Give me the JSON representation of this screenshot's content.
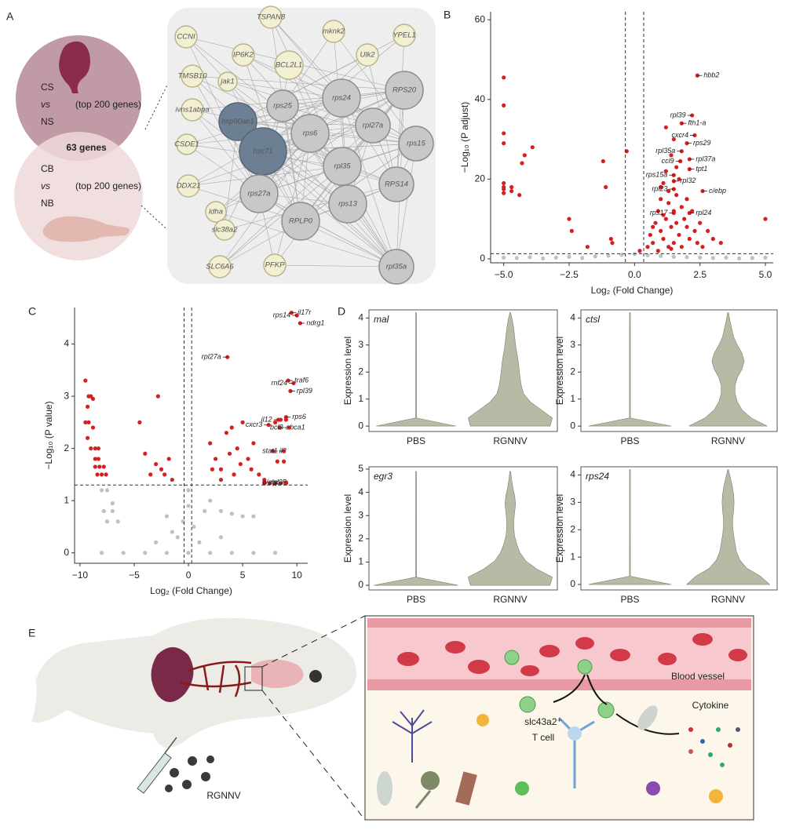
{
  "panel_labels": [
    "A",
    "B",
    "C",
    "D",
    "E"
  ],
  "panel_a": {
    "set_1": [
      "CS",
      "vs",
      "NS",
      "(top 200 genes)"
    ],
    "set_2": [
      "CB",
      "vs",
      "NB",
      "(top 200 genes)"
    ],
    "overlap": "63 genes",
    "nodes": [
      "TSPAN8",
      "mknk2",
      "YPEL1",
      "CCNI",
      "IP6K2",
      "BCL2L1",
      "Ulk2",
      "TMSB10",
      "jak1",
      "rps24",
      "RPS20",
      "ivns1abpa",
      "hsp90ab1",
      "rps25",
      "rpl27a",
      "rps6",
      "CSDE1",
      "hsc71",
      "rps15",
      "rpl35",
      "DDX21",
      "rps27a",
      "RPS14",
      "ldha",
      "rps13",
      "RPLP0",
      "slc38a2",
      "PFKP",
      "SLC6A6",
      "rpl35a"
    ]
  },
  "chart_data": [
    {
      "type": "scatter",
      "xlabel": "Log₂ (Fold Change)",
      "ylabel": "−Log₁₀ (P adjust)",
      "xlim": [
        -5.5,
        5.3
      ],
      "ylim": [
        -1,
        62
      ],
      "xticks": [
        {
          "value": -5,
          "label": "−5.0"
        },
        {
          "value": -2.5,
          "label": "−2.5"
        },
        {
          "value": 0,
          "label": "0.0"
        },
        {
          "value": 2.5,
          "label": "2.5"
        },
        {
          "value": 5,
          "label": "5.0"
        }
      ],
      "yticks": [
        0,
        20,
        40,
        60
      ],
      "vlines": [
        -0.35,
        0.35
      ],
      "hline": 1.3,
      "series": [
        {
          "color": "#c0c0c0",
          "x": [
            -5,
            -4.5,
            -4,
            -3.5,
            -3,
            -2.5,
            -2,
            -1.5,
            -1,
            -0.5,
            0,
            0.5,
            1,
            1.5,
            2,
            2.5,
            3,
            3.5,
            4,
            4.5,
            5
          ],
          "y": [
            0.3,
            0.2,
            0.4,
            0.1,
            0.3,
            0.5,
            0.2,
            0.6,
            0.8,
            1,
            1.2,
            0.9,
            0.7,
            0.5,
            0.4,
            0.3,
            0.2,
            0.3,
            0.1,
            0.2,
            0.3
          ]
        },
        {
          "color": "#d42020",
          "x": [
            -5,
            -5,
            -5,
            -5,
            -5,
            -5,
            -5,
            -5,
            -4.7,
            -4.7,
            -4.3,
            -4.2,
            -3.9,
            -4.4,
            -2.5,
            -2.4,
            -1.8,
            -1.2,
            -1.1,
            -0.9,
            -0.85,
            -0.3,
            0.2,
            0.5,
            0.6,
            0.7,
            0.8,
            0.9,
            1.0,
            1.0,
            1.1,
            1.1,
            1.2,
            1.2,
            1.3,
            1.3,
            1.4,
            1.4,
            1.5,
            1.5,
            1.5,
            1.6,
            1.6,
            1.7,
            1.7,
            1.8,
            1.8,
            1.9,
            2.0,
            2.0,
            2.1,
            2.2,
            2.3,
            2.4,
            2.5,
            2.6,
            2.8,
            3.0,
            1.2,
            0.9,
            1.4,
            1.6,
            1.0,
            5.0,
            3.3,
            1.1,
            1.3,
            0.7
          ],
          "y": [
            45.5,
            38.5,
            31.5,
            29,
            19,
            18,
            17.5,
            16.5,
            18,
            17,
            24,
            26,
            28,
            16,
            10,
            7,
            3,
            24.5,
            18,
            5,
            4,
            27,
            2,
            3,
            6,
            4,
            9,
            12,
            7,
            15,
            5,
            19,
            10,
            22,
            14,
            3,
            8,
            26,
            12,
            4,
            30,
            16,
            9,
            20,
            6,
            13,
            3,
            10,
            8,
            15,
            5,
            12,
            7,
            4,
            9,
            3,
            7,
            5,
            33,
            2,
            2.5,
            23,
            18,
            10,
            4,
            11,
            17,
            8
          ]
        }
      ],
      "labels": [
        {
          "text": "hbb2",
          "x": 2.4,
          "y": 46
        },
        {
          "text": "rpl39",
          "x": 2.2,
          "y": 36
        },
        {
          "text": "fth1-a",
          "x": 1.8,
          "y": 34
        },
        {
          "text": "cxcr4",
          "x": 2.3,
          "y": 31
        },
        {
          "text": "rps29",
          "x": 2.0,
          "y": 29
        },
        {
          "text": "rpl35a",
          "x": 1.8,
          "y": 27
        },
        {
          "text": "rpl37a",
          "x": 2.1,
          "y": 25
        },
        {
          "text": "ccl9",
          "x": 1.75,
          "y": 24.5
        },
        {
          "text": "tpt1",
          "x": 2.1,
          "y": 22.5
        },
        {
          "text": "rps15a",
          "x": 1.5,
          "y": 21
        },
        {
          "text": "rpl32",
          "x": 1.5,
          "y": 19.5
        },
        {
          "text": "rpl23",
          "x": 1.5,
          "y": 17.5
        },
        {
          "text": "c/ebp",
          "x": 2.6,
          "y": 17
        },
        {
          "text": "rps17",
          "x": 1.5,
          "y": 11.5
        },
        {
          "text": "rpl24",
          "x": 2.1,
          "y": 11.5
        }
      ]
    },
    {
      "type": "scatter",
      "xlabel": "Log₂ (Fold Change)",
      "ylabel": "−Log₁₀ (P value)",
      "xlim": [
        -10.5,
        11
      ],
      "ylim": [
        -0.2,
        4.7
      ],
      "xticks": [
        {
          "value": -10,
          "label": "−10"
        },
        {
          "value": -5,
          "label": "−5"
        },
        0,
        5,
        10
      ],
      "yticks": [
        0,
        1,
        2,
        3,
        4
      ],
      "vlines": [
        -0.4,
        0.3
      ],
      "hline": 1.3,
      "series": [
        {
          "color": "#c0c0c0",
          "x": [
            -7.5,
            -8,
            -7,
            -7.8,
            -7,
            -6.5,
            -7.5,
            -8,
            -6,
            -4,
            -2,
            0,
            2,
            4,
            6,
            8,
            -1,
            -0.5,
            0,
            0.5,
            1,
            -1.5,
            1.5,
            2,
            3,
            -2,
            4,
            0,
            5,
            6,
            -3,
            3
          ],
          "y": [
            1.2,
            1.2,
            0.95,
            0.8,
            0.8,
            0.6,
            0.6,
            0,
            0,
            0,
            0,
            0,
            0,
            0,
            0,
            0,
            0.3,
            0.6,
            0.9,
            0.5,
            0.2,
            0.4,
            0.8,
            1.0,
            0.8,
            0.7,
            0.75,
            1.2,
            0.7,
            0.7,
            0.2,
            0.3
          ]
        },
        {
          "color": "#d42020",
          "x": [
            -9.5,
            -9.2,
            -9.0,
            -8.8,
            -9.3,
            -9.5,
            -9.2,
            -8.8,
            -9.3,
            -9.0,
            -8.6,
            -8.3,
            -8.6,
            -8.3,
            -8.6,
            -8.2,
            -7.8,
            -8.4,
            -8.0,
            -7.6,
            -4.5,
            -4.0,
            -3.5,
            -2.8,
            -2.5,
            -2.2,
            -3.0,
            -1.8,
            -1.5,
            2.0,
            2.5,
            3.0,
            3.5,
            3.8,
            4.0,
            4.5,
            4.8,
            5.0,
            5.5,
            6.0,
            6.5,
            7.0,
            3.0,
            2.2,
            5.8,
            4.2,
            7.0,
            7.5,
            8.0,
            8.5,
            9.0,
            8.2,
            8.8,
            8.0,
            8.5,
            9.0
          ],
          "y": [
            3.3,
            3.0,
            3.0,
            2.95,
            2.8,
            2.5,
            2.5,
            2.4,
            2.2,
            2.0,
            2.0,
            2.0,
            1.8,
            1.8,
            1.65,
            1.65,
            1.65,
            1.5,
            1.5,
            1.5,
            2.5,
            1.9,
            1.5,
            3.0,
            1.6,
            1.5,
            1.7,
            1.8,
            1.4,
            2.1,
            1.8,
            1.6,
            2.3,
            1.9,
            2.4,
            2.0,
            1.7,
            2.5,
            1.8,
            2.1,
            1.5,
            1.4,
            1.4,
            1.6,
            1.6,
            1.5,
            1.33,
            1.33,
            1.33,
            1.33,
            1.33,
            1.75,
            1.75,
            2.5,
            2.55,
            2.55
          ]
        }
      ],
      "labels": [
        {
          "text": "il17r",
          "x": 9.5,
          "y": 4.6
        },
        {
          "text": "rps14",
          "x": 10,
          "y": 4.55
        },
        {
          "text": "ndrg1",
          "x": 10.3,
          "y": 4.4
        },
        {
          "text": "rpl27a",
          "x": 3.6,
          "y": 3.75
        },
        {
          "text": "traf6",
          "x": 9.2,
          "y": 3.3
        },
        {
          "text": "rnf24",
          "x": 9.7,
          "y": 3.25
        },
        {
          "text": "rpl39",
          "x": 9.4,
          "y": 3.1
        },
        {
          "text": "il12",
          "x": 8.3,
          "y": 2.55
        },
        {
          "text": "rps6",
          "x": 9.0,
          "y": 2.6
        },
        {
          "text": "cxcr3",
          "x": 7.4,
          "y": 2.45
        },
        {
          "text": "abca1",
          "x": 8.4,
          "y": 2.4
        },
        {
          "text": "bcl3",
          "x": 9.3,
          "y": 2.4
        },
        {
          "text": "il2",
          "x": 7.8,
          "y": 1.95
        },
        {
          "text": "stat1",
          "x": 8.8,
          "y": 1.95
        },
        {
          "text": "rpl35",
          "x": 7.0,
          "y": 1.35
        },
        {
          "text": "c/ebp",
          "x": 9.0,
          "y": 1.35
        }
      ]
    },
    {
      "type": "violin",
      "title": "mal",
      "ylabel": "Expression level",
      "categories": [
        "PBS",
        "RGNNV"
      ],
      "color": "#b7bba6",
      "ylim": [
        -0.2,
        4.3
      ],
      "yticks": [
        0,
        1,
        2,
        3,
        4
      ],
      "levels": [
        0,
        0.3,
        0.6,
        0.9,
        1.2,
        1.5,
        1.8,
        2.1,
        2.4,
        2.7,
        3.0,
        3.3,
        3.6,
        3.9,
        4.2
      ],
      "widths": [
        [
          0.9,
          0.01,
          0.01,
          0.01,
          0.01,
          0.01,
          0.01,
          0.01,
          0.01,
          0.01,
          0,
          0,
          0,
          0,
          0
        ],
        [
          0.9,
          0.95,
          0.7,
          0.45,
          0.3,
          0.25,
          0.22,
          0.2,
          0.18,
          0.15,
          0.12,
          0.1,
          0.08,
          0.05,
          0
        ]
      ]
    },
    {
      "type": "violin",
      "title": "ctsl",
      "ylabel": "Expression level",
      "categories": [
        "PBS",
        "RGNNV"
      ],
      "color": "#b7bba6",
      "ylim": [
        -0.2,
        4.3
      ],
      "yticks": [
        0,
        1,
        2,
        3,
        4
      ],
      "levels": [
        0,
        0.3,
        0.6,
        0.9,
        1.2,
        1.5,
        1.8,
        2.1,
        2.4,
        2.7,
        3.0,
        3.3,
        3.6,
        3.9,
        4.2
      ],
      "widths": [
        [
          0.9,
          0.01,
          0.01,
          0.01,
          0.01,
          0.01,
          0.01,
          0.01,
          0.01,
          0.01,
          0.01,
          0.01,
          0.01,
          0,
          0
        ],
        [
          0.85,
          0.5,
          0.3,
          0.2,
          0.15,
          0.15,
          0.2,
          0.3,
          0.35,
          0.3,
          0.2,
          0.12,
          0.08,
          0.04,
          0
        ]
      ]
    },
    {
      "type": "violin",
      "title": "egr3",
      "ylabel": "Expression level",
      "categories": [
        "PBS",
        "RGNNV"
      ],
      "color": "#b7bba6",
      "ylim": [
        -0.2,
        5.1
      ],
      "yticks": [
        0,
        1,
        2,
        3,
        4,
        5
      ],
      "levels": [
        0,
        0.35,
        0.7,
        1.05,
        1.4,
        1.75,
        2.1,
        2.45,
        2.8,
        3.15,
        3.5,
        3.85,
        4.2,
        4.55,
        4.9
      ],
      "widths": [
        [
          0.95,
          0.01,
          0.01,
          0.01,
          0.01,
          0.01,
          0.01,
          0.01,
          0.01,
          0,
          0,
          0,
          0,
          0,
          0
        ],
        [
          0.9,
          0.95,
          0.6,
          0.35,
          0.22,
          0.15,
          0.1,
          0.08,
          0.08,
          0.1,
          0.12,
          0.1,
          0.06,
          0.03,
          0
        ]
      ]
    },
    {
      "type": "violin",
      "title": "rps24",
      "ylabel": "Expression level",
      "categories": [
        "PBS",
        "RGNNV"
      ],
      "color": "#b7bba6",
      "ylim": [
        -0.2,
        4.3
      ],
      "yticks": [
        0,
        1,
        2,
        3,
        4
      ],
      "levels": [
        0,
        0.3,
        0.6,
        0.9,
        1.2,
        1.5,
        1.8,
        2.1,
        2.4,
        2.7,
        3.0,
        3.3,
        3.6,
        3.9,
        4.2
      ],
      "widths": [
        [
          0.9,
          0.01,
          0.01,
          0.01,
          0.01,
          0.01,
          0,
          0,
          0,
          0,
          0,
          0,
          0,
          0,
          0
        ],
        [
          0.9,
          0.7,
          0.4,
          0.25,
          0.18,
          0.15,
          0.12,
          0.1,
          0.1,
          0.12,
          0.13,
          0.12,
          0.09,
          0.05,
          0
        ]
      ]
    }
  ],
  "panel_e": {
    "virus": "RGNNV",
    "vessel": "Blood vessel",
    "cell": "slc43a2⁺",
    "cell_type": "T cell",
    "cytokine": "Cytokine"
  }
}
